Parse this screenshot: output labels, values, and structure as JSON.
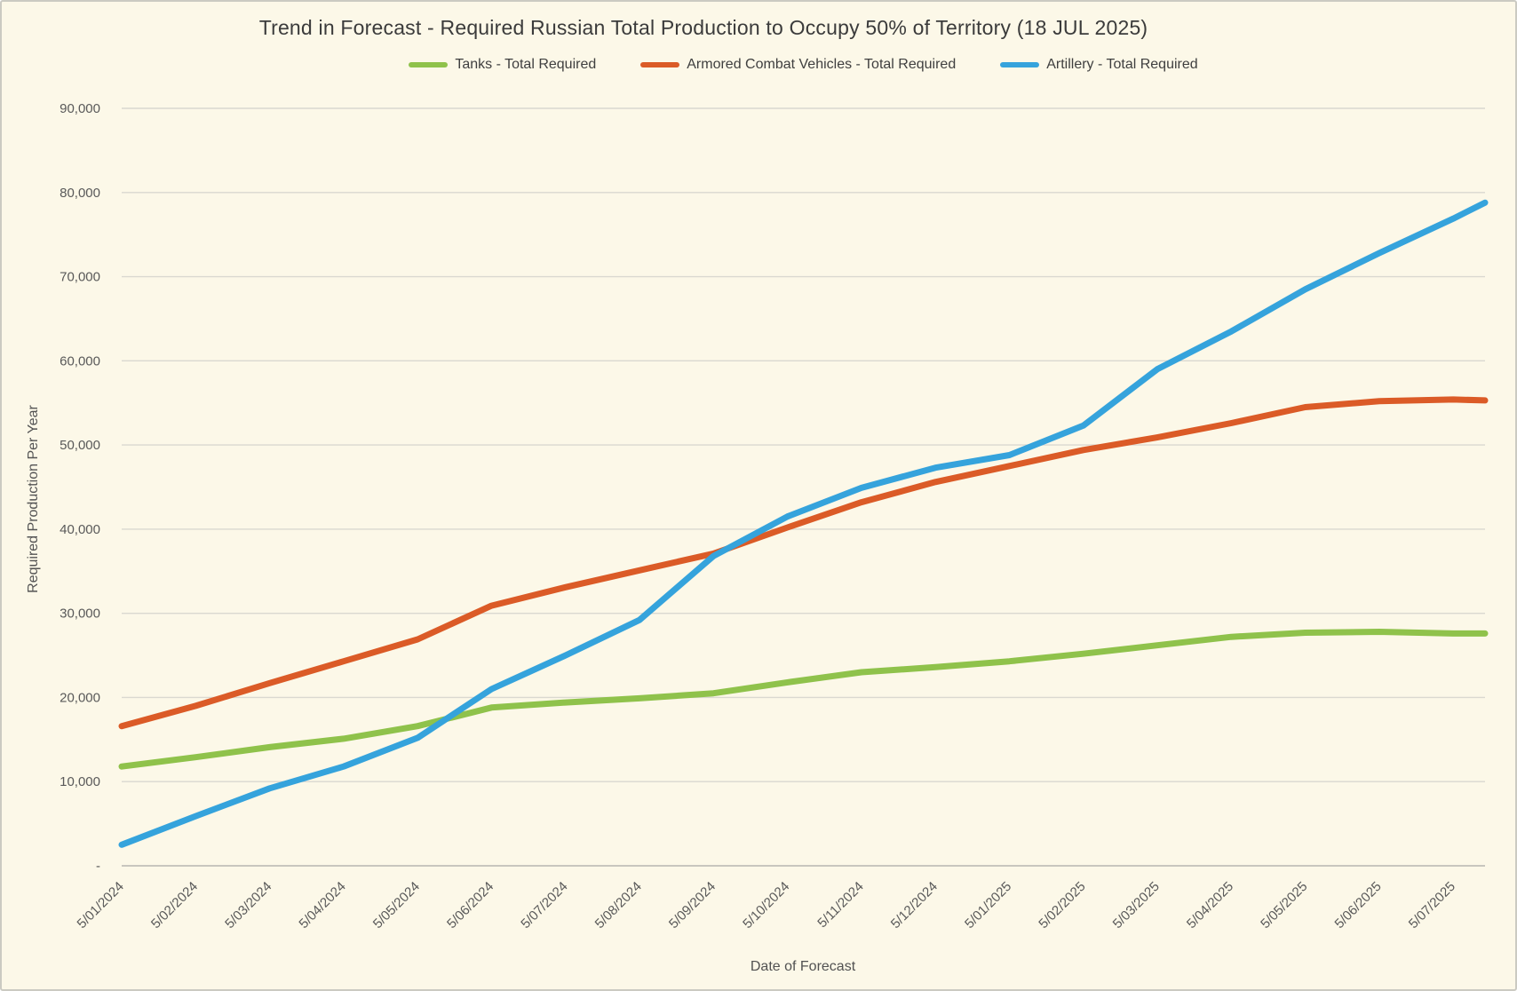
{
  "chart_data": {
    "type": "line",
    "title": "Trend in Forecast - Required Russian Total Production to Occupy 50% of Territory (18 JUL 2025)",
    "xlabel": "Date of Forecast",
    "ylabel": "Required Production Per Year",
    "ylim": [
      0,
      90000
    ],
    "ytick_step": 10000,
    "grid": "horizontal",
    "legend_position": "top-center",
    "background_color": "#FCF8E8",
    "gridline_color": "#DAD8D0",
    "axis_line_color": "#C1BFB8",
    "label_color": "#595959",
    "y_tick_labels": [
      "-",
      "10,000",
      "20,000",
      "30,000",
      "40,000",
      "50,000",
      "60,000",
      "70,000",
      "80,000",
      "90,000"
    ],
    "x_tick_labels": [
      "5/01/2024",
      "5/02/2024",
      "5/03/2024",
      "5/04/2024",
      "5/05/2024",
      "5/06/2024",
      "5/07/2024",
      "5/08/2024",
      "5/09/2024",
      "5/10/2024",
      "5/11/2024",
      "5/12/2024",
      "5/01/2025",
      "5/02/2025",
      "5/03/2025",
      "5/04/2025",
      "5/05/2025",
      "5/06/2025",
      "5/07/2025"
    ],
    "x_points": [
      0,
      1,
      2,
      3,
      4,
      5,
      6,
      7,
      8,
      9,
      10,
      11,
      12,
      13,
      14,
      15,
      16,
      17,
      18,
      18.43
    ],
    "series": [
      {
        "name": "Tanks - Total Required",
        "color": "#8FC24B",
        "values": [
          11800,
          12900,
          14100,
          15100,
          16600,
          18800,
          19400,
          19900,
          20500,
          21800,
          23000,
          23600,
          24300,
          25200,
          26200,
          27200,
          27700,
          27800,
          27600,
          27600
        ]
      },
      {
        "name": "Armored Combat Vehicles - Total Required",
        "color": "#DB5B27",
        "values": [
          16600,
          19000,
          21700,
          24300,
          26900,
          30900,
          33100,
          35100,
          37100,
          40200,
          43200,
          45600,
          47500,
          49400,
          50900,
          52600,
          54500,
          55200,
          55400,
          55300
        ]
      },
      {
        "name": "Artillery - Total Required",
        "color": "#35A3DC",
        "values": [
          2500,
          5900,
          9200,
          11800,
          15200,
          21000,
          25000,
          29200,
          36800,
          41500,
          44900,
          47300,
          48800,
          52300,
          59000,
          63500,
          68500,
          72800,
          76900,
          78800
        ]
      }
    ]
  }
}
